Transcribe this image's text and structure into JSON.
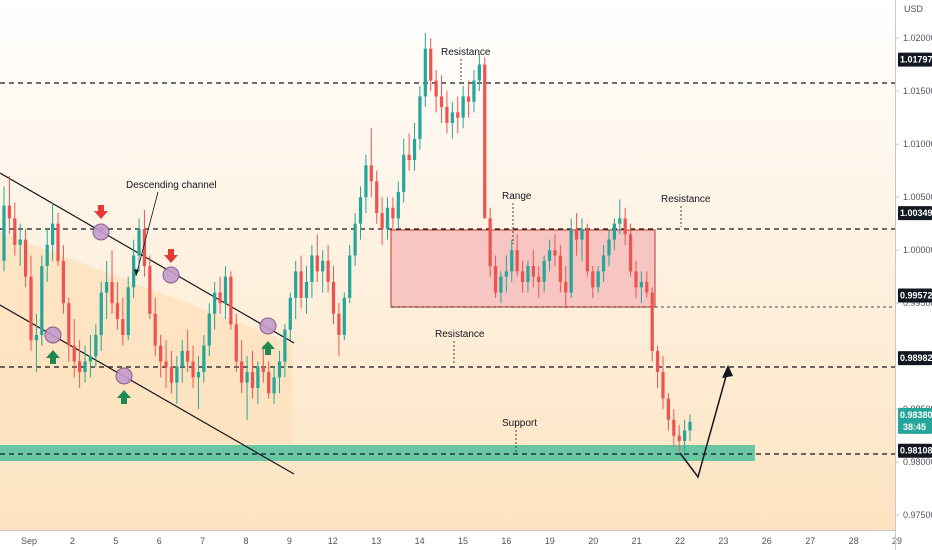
{
  "chart_data": {
    "type": "candlestick",
    "currency": "USD",
    "y_range": [
      0.9736,
      1.0236
    ],
    "x_ticks": [
      "Sep",
      "2",
      "5",
      "6",
      "7",
      "8",
      "9",
      "12",
      "13",
      "14",
      "15",
      "16",
      "19",
      "20",
      "21",
      "22",
      "23",
      "26",
      "27",
      "28",
      "29"
    ],
    "y_ticks": [
      "1.02000",
      "1.01500",
      "1.01000",
      "1.00500",
      "1.00000",
      "0.99500",
      "0.98500",
      "0.98000",
      "0.97500"
    ],
    "price_labels": {
      "resistance_top": {
        "value": 1.01797,
        "text": "1.01797"
      },
      "resistance_range": {
        "value": 1.00349,
        "text": "1.00349"
      },
      "range_low": {
        "value": 0.99572,
        "text": "0.99572"
      },
      "resistance_mid": {
        "value": 0.98982,
        "text": "0.98982"
      },
      "current_price": {
        "value": 0.9838,
        "text": "0.98380",
        "countdown": "38:45"
      },
      "support": {
        "value": 0.98108,
        "text": "0.98108"
      }
    },
    "annotations": {
      "descending_channel": "Descending channel",
      "range": "Range",
      "resistance": "Resistance",
      "support": "Support"
    },
    "colors": {
      "up": "#26a69a",
      "down": "#ef5350",
      "channel_fill": "#fde9c9",
      "range_fill": "#f7c5c2",
      "support_fill": "#4fbf9b",
      "marker_fill": "#c39bc9",
      "arrow_up": "#1e8a52",
      "arrow_down": "#e53935",
      "line": "#131722"
    },
    "candles": [
      [
        0.999,
        1.006,
        0.998,
        1.0042
      ],
      [
        1.0042,
        1.007,
        1.0015,
        1.003
      ],
      [
        1.003,
        1.0045,
        0.9995,
        1.0005
      ],
      [
        1.0005,
        1.0025,
        0.9985,
        1.001
      ],
      [
        1.001,
        1.002,
        0.9965,
        0.9975
      ],
      [
        0.9975,
        0.9995,
        0.9905,
        0.9915
      ],
      [
        0.9915,
        0.994,
        0.9885,
        0.992
      ],
      [
        0.992,
        0.9995,
        0.991,
        0.9985
      ],
      [
        0.9985,
        1.002,
        0.997,
        1.0005
      ],
      [
        1.0005,
        1.0045,
        0.999,
        1.0025
      ],
      [
        1.0025,
        1.0035,
        0.9985,
        0.999
      ],
      [
        0.999,
        1.0005,
        0.994,
        0.995
      ],
      [
        0.995,
        0.9955,
        0.9895,
        0.991
      ],
      [
        0.991,
        0.9935,
        0.988,
        0.9895
      ],
      [
        0.9895,
        0.9915,
        0.987,
        0.9885
      ],
      [
        0.9885,
        0.991,
        0.9875,
        0.9895
      ],
      [
        0.9895,
        0.992,
        0.988,
        0.99
      ],
      [
        0.99,
        0.993,
        0.989,
        0.992
      ],
      [
        0.992,
        0.997,
        0.9905,
        0.996
      ],
      [
        0.996,
        0.999,
        0.9935,
        0.997
      ],
      [
        0.997,
        1.0,
        0.994,
        0.995
      ],
      [
        0.995,
        0.997,
        0.9925,
        0.9935
      ],
      [
        0.9935,
        0.9955,
        0.991,
        0.992
      ],
      [
        0.992,
        0.9975,
        0.9915,
        0.9965
      ],
      [
        0.9965,
        1.001,
        0.9955,
        0.9995
      ],
      [
        0.9995,
        1.003,
        0.998,
        1.002
      ],
      [
        1.002,
        1.0038,
        0.9975,
        0.9985
      ],
      [
        0.9985,
        0.9995,
        0.9935,
        0.994
      ],
      [
        0.994,
        0.9955,
        0.99,
        0.991
      ],
      [
        0.991,
        0.992,
        0.988,
        0.9895
      ],
      [
        0.9895,
        0.9915,
        0.987,
        0.989
      ],
      [
        0.989,
        0.9905,
        0.9865,
        0.9875
      ],
      [
        0.9875,
        0.99,
        0.9855,
        0.989
      ],
      [
        0.989,
        0.9915,
        0.9875,
        0.9905
      ],
      [
        0.9905,
        0.9925,
        0.9885,
        0.9895
      ],
      [
        0.9895,
        0.991,
        0.987,
        0.988
      ],
      [
        0.988,
        0.99,
        0.985,
        0.9885
      ],
      [
        0.9885,
        0.992,
        0.9875,
        0.991
      ],
      [
        0.991,
        0.995,
        0.99,
        0.994
      ],
      [
        0.994,
        0.997,
        0.9925,
        0.996
      ],
      [
        0.996,
        0.9975,
        0.994,
        0.995
      ],
      [
        0.995,
        0.9985,
        0.9935,
        0.9975
      ],
      [
        0.9975,
        0.998,
        0.9925,
        0.993
      ],
      [
        0.993,
        0.994,
        0.9885,
        0.9895
      ],
      [
        0.9895,
        0.9915,
        0.9865,
        0.9875
      ],
      [
        0.9875,
        0.99,
        0.984,
        0.9885
      ],
      [
        0.9885,
        0.9905,
        0.986,
        0.987
      ],
      [
        0.987,
        0.9895,
        0.9855,
        0.989
      ],
      [
        0.989,
        0.991,
        0.9875,
        0.9885
      ],
      [
        0.9885,
        0.9895,
        0.986,
        0.9865
      ],
      [
        0.9865,
        0.989,
        0.9855,
        0.988
      ],
      [
        0.988,
        0.9905,
        0.9865,
        0.9895
      ],
      [
        0.9895,
        0.993,
        0.988,
        0.9925
      ],
      [
        0.9925,
        0.996,
        0.9915,
        0.9955
      ],
      [
        0.9955,
        0.999,
        0.9935,
        0.998
      ],
      [
        0.998,
        0.9995,
        0.9945,
        0.9955
      ],
      [
        0.9955,
        0.9985,
        0.994,
        0.997
      ],
      [
        0.997,
        1.0005,
        0.9955,
        0.9995
      ],
      [
        0.9995,
        1.0015,
        0.997,
        0.998
      ],
      [
        0.998,
        1.0,
        0.996,
        0.999
      ],
      [
        0.999,
        1.0005,
        0.996,
        0.997
      ],
      [
        0.997,
        0.9985,
        0.993,
        0.994
      ],
      [
        0.994,
        0.995,
        0.99,
        0.992
      ],
      [
        0.992,
        0.996,
        0.9915,
        0.9955
      ],
      [
        0.9955,
        1.0005,
        0.995,
        0.9995
      ],
      [
        0.9995,
        1.0035,
        0.9985,
        1.0025
      ],
      [
        1.0025,
        1.006,
        1.001,
        1.005
      ],
      [
        1.005,
        1.009,
        1.0035,
        1.008
      ],
      [
        1.008,
        1.0115,
        1.005,
        1.0065
      ],
      [
        1.0065,
        1.0075,
        1.0025,
        1.0035
      ],
      [
        1.0035,
        1.005,
        1.0005,
        1.002
      ],
      [
        1.002,
        1.005,
        1.001,
        1.004
      ],
      [
        1.004,
        1.005,
        1.002,
        1.003
      ],
      [
        1.003,
        1.0065,
        1.002,
        1.0055
      ],
      [
        1.0055,
        1.0105,
        1.0045,
        1.009
      ],
      [
        1.009,
        1.011,
        1.0075,
        1.0085
      ],
      [
        1.0085,
        1.012,
        1.0075,
        1.0105
      ],
      [
        1.0105,
        1.0155,
        1.0095,
        1.0145
      ],
      [
        1.0145,
        1.0205,
        1.0135,
        1.019
      ],
      [
        1.019,
        1.02,
        1.015,
        1.016
      ],
      [
        1.016,
        1.017,
        1.013,
        1.0145
      ],
      [
        1.0145,
        1.0165,
        1.012,
        1.0135
      ],
      [
        1.0135,
        1.015,
        1.011,
        1.012
      ],
      [
        1.012,
        1.014,
        1.0105,
        1.013
      ],
      [
        1.013,
        1.0145,
        1.011,
        1.0125
      ],
      [
        1.0125,
        1.0155,
        1.0115,
        1.0145
      ],
      [
        1.0145,
        1.016,
        1.0125,
        1.014
      ],
      [
        1.014,
        1.017,
        1.013,
        1.016
      ],
      [
        1.016,
        1.0185,
        1.015,
        1.0175
      ],
      [
        1.0175,
        1.0182,
        1.003,
        1.003
      ],
      [
        1.003,
        1.004,
        0.9975,
        0.9985
      ],
      [
        0.9985,
        0.9995,
        0.9955,
        0.996
      ],
      [
        0.996,
        0.998,
        0.995,
        0.9975
      ],
      [
        0.9975,
        0.9995,
        0.996,
        0.998
      ],
      [
        0.998,
        1.001,
        0.997,
        1.0
      ],
      [
        1.0,
        1.0015,
        0.9975,
        0.998
      ],
      [
        0.998,
        0.999,
        0.996,
        0.997
      ],
      [
        0.997,
        0.999,
        0.996,
        0.9985
      ],
      [
        0.9985,
        1.0,
        0.9965,
        0.9975
      ],
      [
        0.9975,
        0.9985,
        0.9955,
        0.997
      ],
      [
        0.997,
        0.9995,
        0.996,
        0.999
      ],
      [
        0.999,
        1.001,
        0.998,
        1.0
      ],
      [
        1.0,
        1.0015,
        0.9985,
        0.9995
      ],
      [
        0.9995,
        1.0005,
        0.996,
        0.997
      ],
      [
        0.997,
        0.9985,
        0.9945,
        0.996
      ],
      [
        0.996,
        1.003,
        0.9955,
        1.002
      ],
      [
        1.002,
        1.0035,
        0.9995,
        1.001
      ],
      [
        1.001,
        1.003,
        0.999,
        1.002
      ],
      [
        1.002,
        1.0025,
        0.9975,
        0.998
      ],
      [
        0.998,
        0.9985,
        0.9955,
        0.9965
      ],
      [
        0.9965,
        0.9985,
        0.996,
        0.998
      ],
      [
        0.998,
        1.0005,
        0.997,
        0.9995
      ],
      [
        0.9995,
        1.002,
        0.9985,
        1.001
      ],
      [
        1.001,
        1.003,
        1.0,
        1.0025
      ],
      [
        1.0025,
        1.0048,
        1.0015,
        1.003
      ],
      [
        1.003,
        1.004,
        1.0005,
        1.0015
      ],
      [
        1.0015,
        1.0025,
        0.9975,
        0.998
      ],
      [
        0.998,
        0.999,
        0.9955,
        0.9965
      ],
      [
        0.9965,
        0.998,
        0.995,
        0.997
      ],
      [
        0.997,
        0.998,
        0.9955,
        0.996
      ],
      [
        0.996,
        0.9965,
        0.9895,
        0.9905
      ],
      [
        0.9905,
        0.991,
        0.987,
        0.9885
      ],
      [
        0.9885,
        0.99,
        0.985,
        0.986
      ],
      [
        0.986,
        0.9865,
        0.983,
        0.984
      ],
      [
        0.984,
        0.985,
        0.9815,
        0.9825
      ],
      [
        0.9825,
        0.9835,
        0.981,
        0.982
      ],
      [
        0.982,
        0.984,
        0.981,
        0.983
      ],
      [
        0.983,
        0.9845,
        0.982,
        0.9838
      ]
    ]
  }
}
